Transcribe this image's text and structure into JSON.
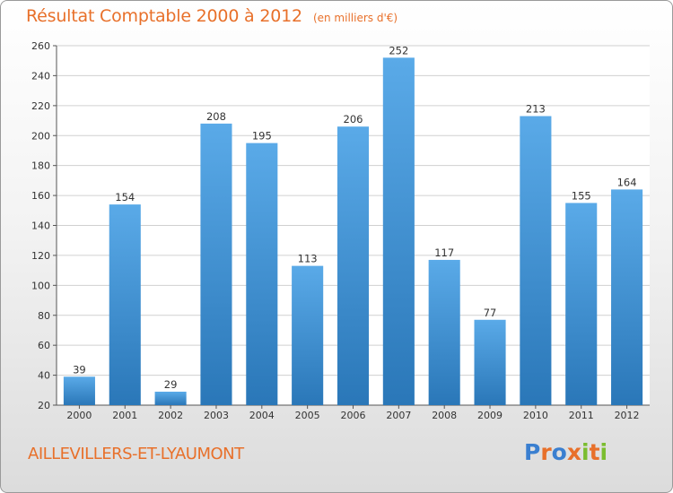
{
  "header": {
    "title": "Résultat Comptable 2000 à 2012",
    "unit": "(en milliers d'€)"
  },
  "footer": {
    "commune": "AILLEVILLERS-ET-LYAUMONT",
    "logo": "Proxiti",
    "logo_colors": [
      "#3a7fd0",
      "#e8702a",
      "#3a7fd0",
      "#e8702a",
      "#7bbd2f",
      "#e8702a",
      "#7bbd2f"
    ]
  },
  "colors": {
    "bar_top": "#5aaae8",
    "bar_bottom": "#2a77b8",
    "accent": "#e8702a",
    "grid": "#d0d0d0"
  },
  "chart_data": {
    "type": "bar",
    "title": "Résultat Comptable 2000 à 2012",
    "subtitle": "(en milliers d'€)",
    "xlabel": "",
    "ylabel": "",
    "categories": [
      "2000",
      "2001",
      "2002",
      "2003",
      "2004",
      "2005",
      "2006",
      "2007",
      "2008",
      "2009",
      "2010",
      "2011",
      "2012"
    ],
    "values": [
      39,
      154,
      29,
      208,
      195,
      113,
      206,
      252,
      117,
      77,
      213,
      155,
      164
    ],
    "ylim": [
      20,
      260
    ],
    "yticks": [
      20,
      40,
      60,
      80,
      100,
      120,
      140,
      160,
      180,
      200,
      220,
      240,
      260
    ],
    "grid": true
  }
}
